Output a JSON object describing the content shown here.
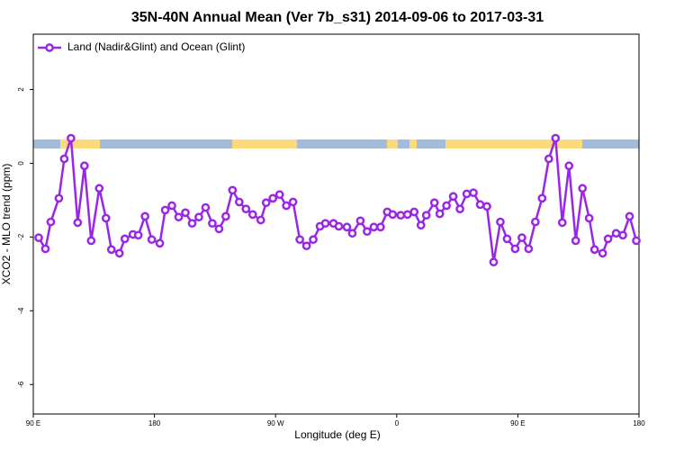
{
  "chart_data": {
    "type": "line",
    "title": "35N-40N Annual Mean (Ver 7b_s31)   2014-09-06 to 2017-03-31",
    "x_label": "Longitude (deg E)",
    "y_label": "XCO2 - MLO trend (ppm)",
    "xlim": [
      90,
      540
    ],
    "xticks": [
      {
        "value": 90,
        "label": "90 E"
      },
      {
        "value": 180,
        "label": "180"
      },
      {
        "value": 270,
        "label": "90 W"
      },
      {
        "value": 360,
        "label": "0"
      },
      {
        "value": 450,
        "label": "90 E"
      },
      {
        "value": 540,
        "label": "180"
      }
    ],
    "ylim": [
      -6.8,
      3.5
    ],
    "yticks": [
      -6,
      -4,
      -2,
      0,
      2
    ],
    "legend": "upper left",
    "x": [
      94,
      99,
      103,
      109,
      113,
      118,
      123,
      128,
      133,
      139,
      144,
      148,
      154,
      158,
      164,
      168,
      173,
      178,
      184,
      188,
      193,
      198,
      203,
      208,
      213,
      218,
      223,
      228,
      233,
      238,
      243,
      248,
      253,
      259,
      263,
      268,
      273,
      278,
      283,
      288,
      293,
      298,
      303,
      307,
      313,
      317,
      323,
      327,
      333,
      338,
      343,
      348,
      353,
      357,
      363,
      368,
      373,
      378,
      382,
      388,
      392,
      397,
      402,
      407,
      412,
      417,
      422,
      427,
      432,
      437,
      442,
      448,
      453,
      458,
      463,
      468,
      473,
      478,
      483,
      488,
      493,
      498,
      503,
      507,
      513,
      517,
      523,
      528,
      533,
      538
    ],
    "series": [
      {
        "name": "Land (Nadir&Glint) and Ocean (Glint)",
        "color": "#9b27e6",
        "values": [
          -2.02,
          -2.32,
          -1.59,
          -0.95,
          0.12,
          0.68,
          -1.61,
          -0.07,
          -2.1,
          -0.68,
          -1.49,
          -2.34,
          -2.44,
          -2.05,
          -1.93,
          -1.95,
          -1.44,
          -2.07,
          -2.17,
          -1.27,
          -1.15,
          -1.46,
          -1.34,
          -1.63,
          -1.46,
          -1.2,
          -1.63,
          -1.78,
          -1.44,
          -0.73,
          -1.05,
          -1.24,
          -1.39,
          -1.54,
          -1.07,
          -0.95,
          -0.85,
          -1.15,
          -1.05,
          -2.07,
          -2.24,
          -2.07,
          -1.71,
          -1.63,
          -1.63,
          -1.71,
          -1.73,
          -1.9,
          -1.56,
          -1.85,
          -1.73,
          -1.73,
          -1.32,
          -1.39,
          -1.41,
          -1.39,
          -1.32,
          -1.68,
          -1.41,
          -1.07,
          -1.37,
          -1.15,
          -0.9,
          -1.24,
          -0.83,
          -0.8,
          -1.12,
          -1.17,
          -2.68,
          -1.59,
          -2.05,
          -2.32,
          -2.02,
          -2.32,
          -1.59,
          -0.95,
          0.12,
          0.68,
          -1.61,
          -0.07,
          -2.1,
          -0.68,
          -1.49,
          -2.34,
          -2.44,
          -2.05,
          -1.9,
          -1.95,
          -1.44,
          -2.1
        ]
      }
    ]
  }
}
